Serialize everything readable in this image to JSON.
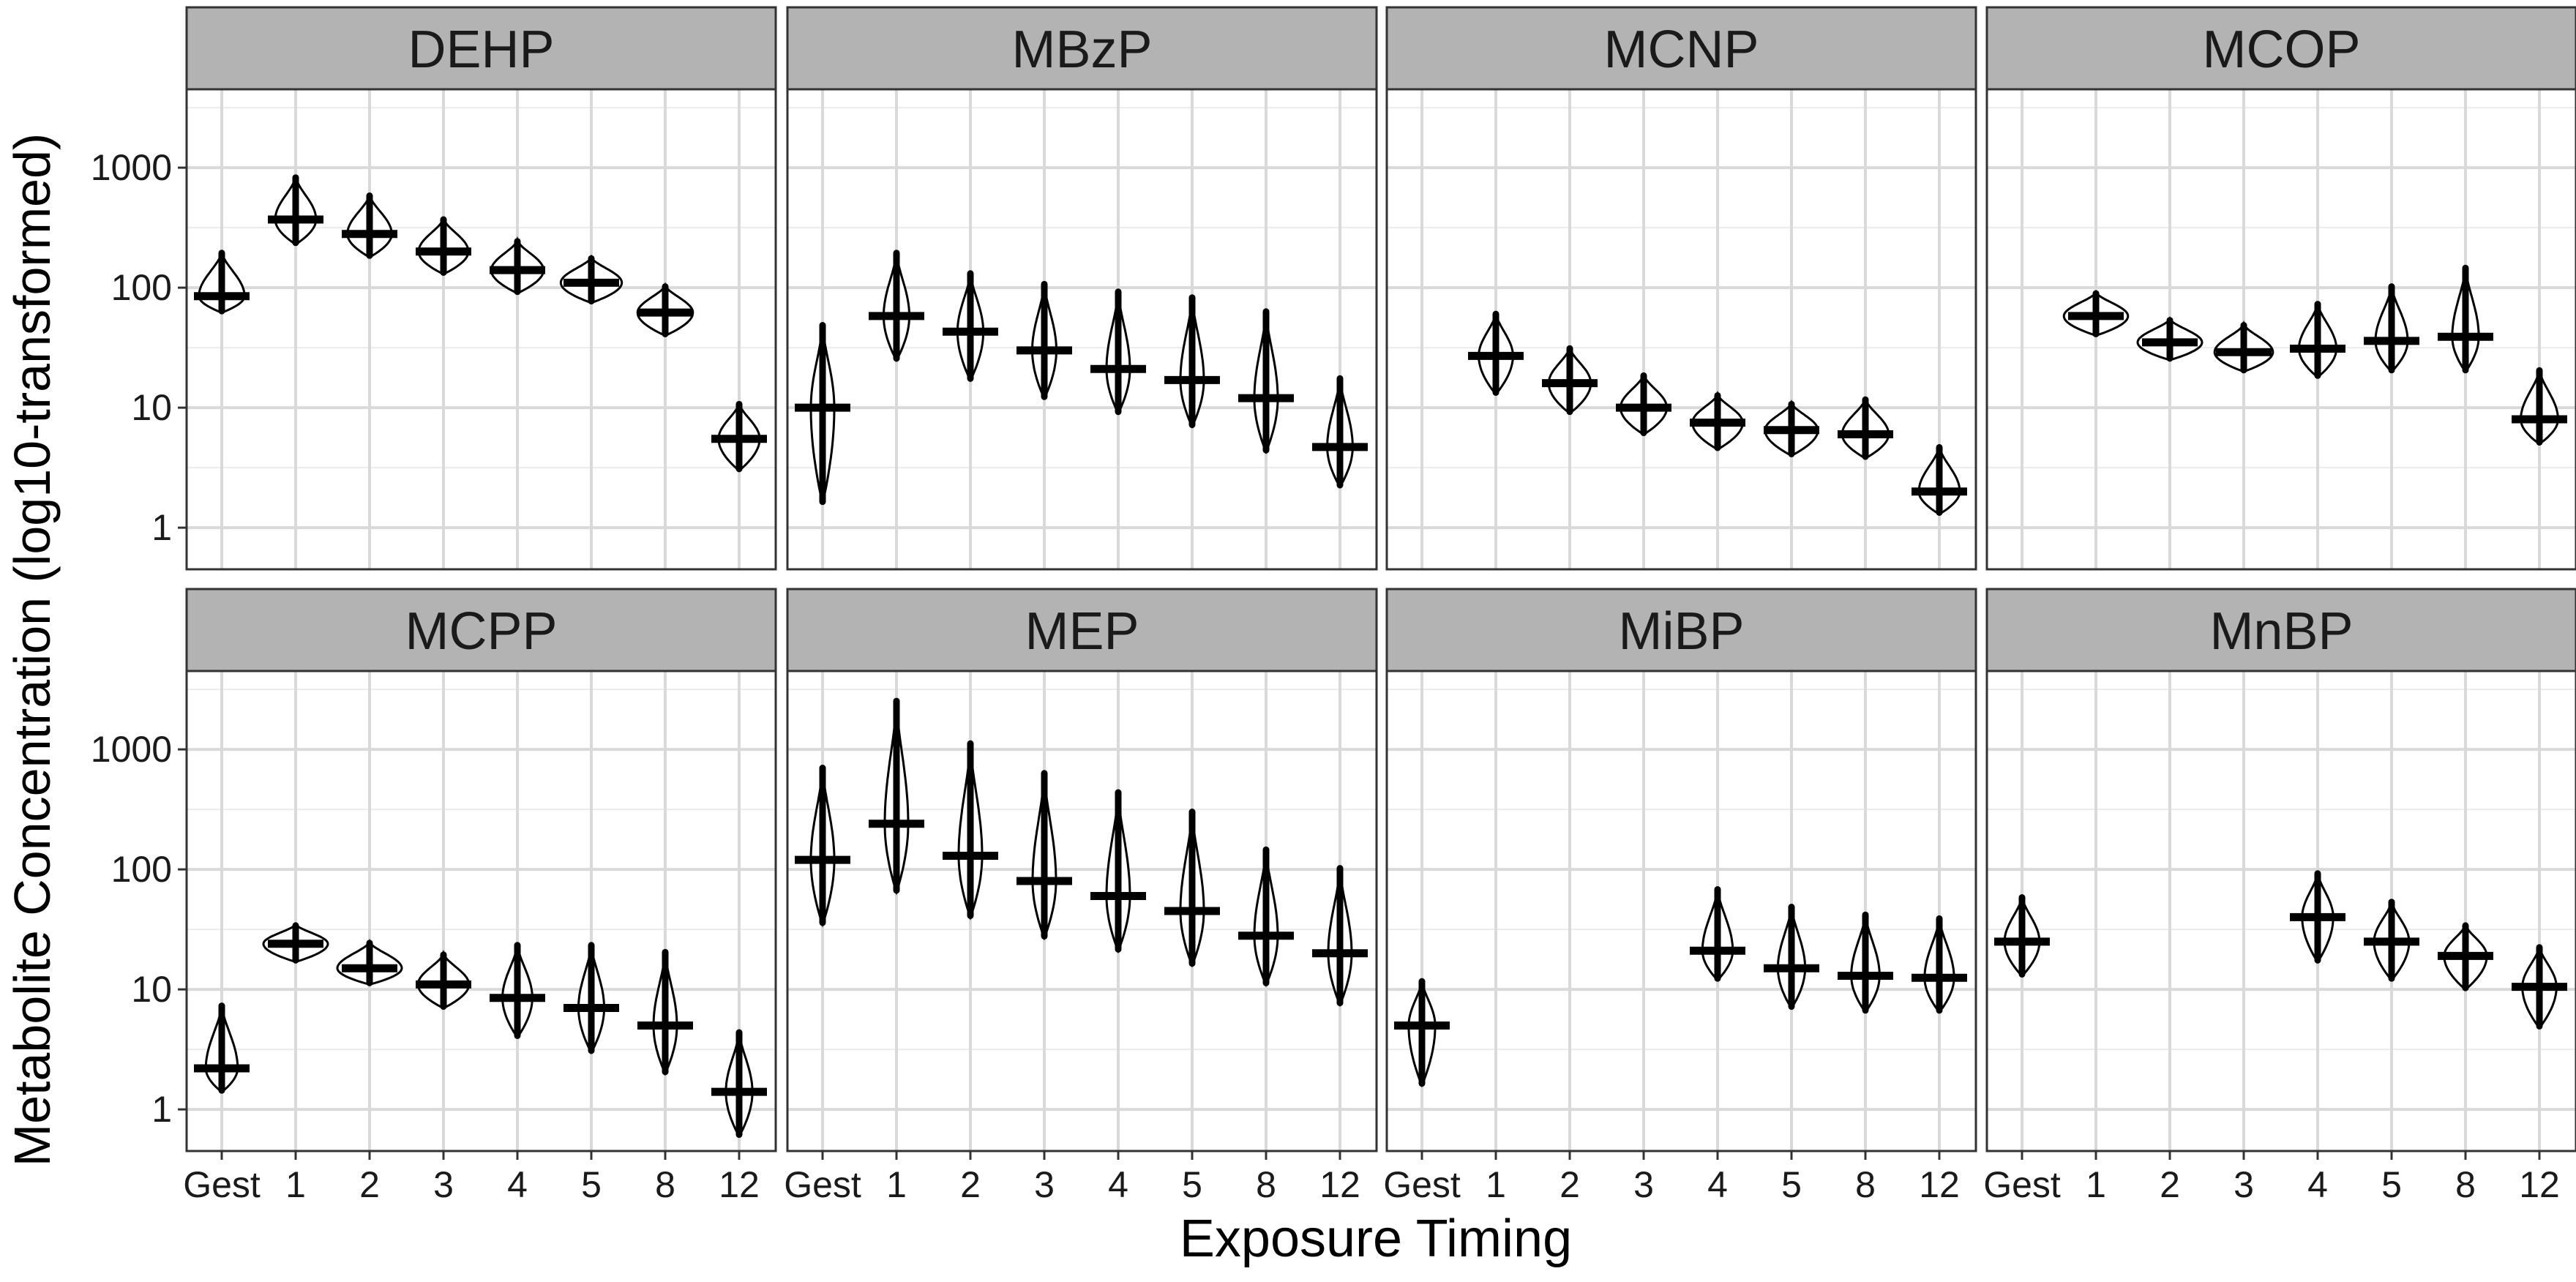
{
  "chart_data": {
    "type": "violin",
    "xlabel": "Exposure Timing",
    "ylabel": "Metabolite Concentration (log10-transformed)",
    "yscale": "log10",
    "ylim": [
      0.45,
      4500
    ],
    "yticks": [
      1,
      10,
      100,
      1000
    ],
    "ytick_labels": [
      "1",
      "10",
      "100",
      "1000"
    ],
    "grid": true,
    "layout": "facets 2 rows x 4 columns",
    "categories": [
      "Gest",
      "1",
      "2",
      "3",
      "4",
      "5",
      "8",
      "12"
    ],
    "x_labels_shown": [
      "Gest",
      "1",
      "2",
      "3",
      "4",
      "5",
      "8",
      "12"
    ],
    "facets": [
      {
        "name": "DEHP",
        "series": [
          {
            "x": "Gest",
            "median": 85,
            "min": 62,
            "max": 200
          },
          {
            "x": "1",
            "median": 370,
            "min": 230,
            "max": 850
          },
          {
            "x": "2",
            "median": 280,
            "min": 180,
            "max": 600
          },
          {
            "x": "3",
            "median": 200,
            "min": 130,
            "max": 380
          },
          {
            "x": "4",
            "median": 140,
            "min": 90,
            "max": 250
          },
          {
            "x": "5",
            "median": 110,
            "min": 75,
            "max": 180
          },
          {
            "x": "8",
            "median": 62,
            "min": 40,
            "max": 105
          },
          {
            "x": "12",
            "median": 5.5,
            "min": 3,
            "max": 11
          }
        ]
      },
      {
        "name": "MBzP",
        "series": [
          {
            "x": "Gest",
            "median": 10,
            "min": 1.6,
            "max": 50
          },
          {
            "x": "1",
            "median": 58,
            "min": 25,
            "max": 200
          },
          {
            "x": "2",
            "median": 43,
            "min": 17,
            "max": 135
          },
          {
            "x": "3",
            "median": 30,
            "min": 12,
            "max": 110
          },
          {
            "x": "4",
            "median": 21,
            "min": 9,
            "max": 95
          },
          {
            "x": "5",
            "median": 17,
            "min": 7,
            "max": 85
          },
          {
            "x": "8",
            "median": 12,
            "min": 4.3,
            "max": 65
          },
          {
            "x": "12",
            "median": 4.7,
            "min": 2.2,
            "max": 18
          }
        ]
      },
      {
        "name": "MCNP",
        "series": [
          {
            "x": "1",
            "median": 27,
            "min": 13,
            "max": 62
          },
          {
            "x": "2",
            "median": 16,
            "min": 9,
            "max": 32
          },
          {
            "x": "3",
            "median": 10,
            "min": 6,
            "max": 19
          },
          {
            "x": "4",
            "median": 7.5,
            "min": 4.5,
            "max": 13
          },
          {
            "x": "5",
            "median": 6.5,
            "min": 4,
            "max": 11
          },
          {
            "x": "8",
            "median": 6,
            "min": 3.8,
            "max": 12
          },
          {
            "x": "12",
            "median": 2,
            "min": 1.3,
            "max": 4.8
          }
        ]
      },
      {
        "name": "MCOP",
        "series": [
          {
            "x": "1",
            "median": 58,
            "min": 40,
            "max": 92
          },
          {
            "x": "2",
            "median": 35,
            "min": 25,
            "max": 55
          },
          {
            "x": "3",
            "median": 29,
            "min": 20,
            "max": 50
          },
          {
            "x": "4",
            "median": 31,
            "min": 18,
            "max": 75
          },
          {
            "x": "5",
            "median": 36,
            "min": 20,
            "max": 105
          },
          {
            "x": "8",
            "median": 39,
            "min": 20,
            "max": 150
          },
          {
            "x": "12",
            "median": 8,
            "min": 5,
            "max": 21
          }
        ]
      },
      {
        "name": "MCPP",
        "series": [
          {
            "x": "Gest",
            "median": 2.2,
            "min": 1.4,
            "max": 7.5
          },
          {
            "x": "1",
            "median": 24,
            "min": 17,
            "max": 35
          },
          {
            "x": "2",
            "median": 15,
            "min": 11,
            "max": 25
          },
          {
            "x": "3",
            "median": 11,
            "min": 7,
            "max": 20
          },
          {
            "x": "4",
            "median": 8.5,
            "min": 4,
            "max": 24
          },
          {
            "x": "5",
            "median": 7,
            "min": 3,
            "max": 24
          },
          {
            "x": "8",
            "median": 5,
            "min": 2,
            "max": 21
          },
          {
            "x": "12",
            "median": 1.4,
            "min": 0.6,
            "max": 4.5
          }
        ]
      },
      {
        "name": "MEP",
        "series": [
          {
            "x": "Gest",
            "median": 120,
            "min": 35,
            "max": 720
          },
          {
            "x": "1",
            "median": 240,
            "min": 65,
            "max": 2600
          },
          {
            "x": "2",
            "median": 130,
            "min": 40,
            "max": 1150
          },
          {
            "x": "3",
            "median": 80,
            "min": 27,
            "max": 650
          },
          {
            "x": "4",
            "median": 60,
            "min": 21,
            "max": 450
          },
          {
            "x": "5",
            "median": 45,
            "min": 16,
            "max": 310
          },
          {
            "x": "8",
            "median": 28,
            "min": 11,
            "max": 150
          },
          {
            "x": "12",
            "median": 20,
            "min": 7.5,
            "max": 105
          }
        ]
      },
      {
        "name": "MiBP",
        "series": [
          {
            "x": "Gest",
            "median": 5,
            "min": 1.6,
            "max": 12
          },
          {
            "x": "4",
            "median": 21,
            "min": 12,
            "max": 70
          },
          {
            "x": "5",
            "median": 15,
            "min": 7,
            "max": 50
          },
          {
            "x": "8",
            "median": 13,
            "min": 6.5,
            "max": 43
          },
          {
            "x": "12",
            "median": 12.5,
            "min": 6.5,
            "max": 40
          }
        ]
      },
      {
        "name": "MnBP",
        "series": [
          {
            "x": "Gest",
            "median": 25,
            "min": 13,
            "max": 60
          },
          {
            "x": "4",
            "median": 40,
            "min": 17,
            "max": 95
          },
          {
            "x": "5",
            "median": 25,
            "min": 12,
            "max": 55
          },
          {
            "x": "8",
            "median": 19,
            "min": 10,
            "max": 35
          },
          {
            "x": "12",
            "median": 10.5,
            "min": 4.8,
            "max": 23
          }
        ]
      }
    ]
  }
}
